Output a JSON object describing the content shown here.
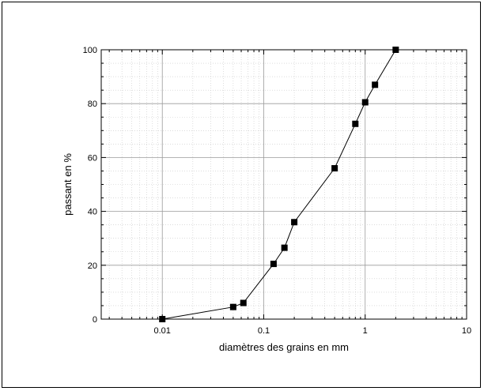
{
  "chart_data": {
    "type": "line",
    "xlabel": "diamètres des grains en mm",
    "ylabel": "passant en %",
    "xscale": "log",
    "xlim": [
      0.0025,
      10
    ],
    "ylim": [
      0,
      100
    ],
    "x_ticks": [
      0.01,
      0.1,
      1,
      10
    ],
    "x_tick_labels": [
      "0.01",
      "0.1",
      "1",
      "10"
    ],
    "y_ticks": [
      0,
      20,
      40,
      60,
      80,
      100
    ],
    "y_tick_labels": [
      "0",
      "20",
      "40",
      "60",
      "80",
      "100"
    ],
    "grid": true,
    "marker": "square",
    "series": [
      {
        "points": [
          {
            "x": 0.01,
            "y": 0
          },
          {
            "x": 0.05,
            "y": 4.5
          },
          {
            "x": 0.063,
            "y": 6
          },
          {
            "x": 0.125,
            "y": 20.5
          },
          {
            "x": 0.16,
            "y": 26.5
          },
          {
            "x": 0.2,
            "y": 36
          },
          {
            "x": 0.5,
            "y": 56
          },
          {
            "x": 0.8,
            "y": 72.5
          },
          {
            "x": 1,
            "y": 80.5
          },
          {
            "x": 1.25,
            "y": 87
          },
          {
            "x": 2,
            "y": 100
          }
        ]
      }
    ],
    "colors": {
      "line": "#000000",
      "grid_major": "#9a9a9a",
      "grid_minor": "#c8c8c8"
    }
  }
}
